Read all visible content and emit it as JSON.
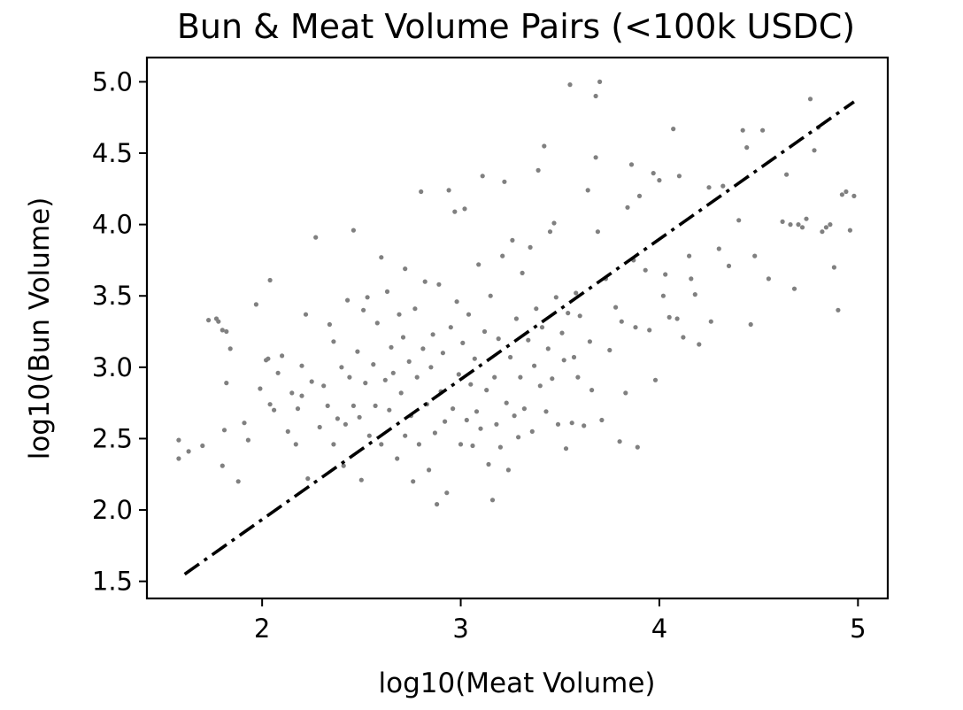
{
  "chart_data": {
    "type": "scatter",
    "title": "Bun & Meat Volume Pairs (<100k USDC)",
    "xlabel": "log10(Meat Volume)",
    "ylabel": "log10(Bun Volume)",
    "xlim": [
      1.42,
      5.15
    ],
    "ylim": [
      1.38,
      5.17
    ],
    "xticks": [
      {
        "value": 2,
        "label": "2"
      },
      {
        "value": 3,
        "label": "3"
      },
      {
        "value": 4,
        "label": "4"
      },
      {
        "value": 5,
        "label": "5"
      }
    ],
    "yticks": [
      {
        "value": 1.5,
        "label": "1.5"
      },
      {
        "value": 2.0,
        "label": "2.0"
      },
      {
        "value": 2.5,
        "label": "2.5"
      },
      {
        "value": 3.0,
        "label": "3.0"
      },
      {
        "value": 3.5,
        "label": "3.5"
      },
      {
        "value": 4.0,
        "label": "4.0"
      },
      {
        "value": 4.5,
        "label": "4.5"
      },
      {
        "value": 5.0,
        "label": "5.0"
      }
    ],
    "grid": false,
    "colors": {
      "points": "#808080",
      "line": "#000000",
      "axes": "#000000"
    },
    "series": [
      {
        "kind": "scatter",
        "points": [
          [
            1.58,
            2.49
          ],
          [
            1.58,
            2.36
          ],
          [
            1.63,
            2.41
          ],
          [
            1.7,
            2.45
          ],
          [
            1.73,
            3.33
          ],
          [
            1.77,
            3.34
          ],
          [
            1.78,
            3.32
          ],
          [
            1.8,
            3.26
          ],
          [
            1.82,
            3.25
          ],
          [
            1.82,
            2.89
          ],
          [
            1.8,
            2.31
          ],
          [
            1.81,
            2.56
          ],
          [
            1.84,
            3.13
          ],
          [
            1.88,
            2.2
          ],
          [
            1.91,
            2.61
          ],
          [
            1.93,
            2.49
          ],
          [
            1.97,
            3.44
          ],
          [
            1.99,
            2.85
          ],
          [
            2.02,
            3.05
          ],
          [
            2.03,
            3.06
          ],
          [
            2.04,
            3.61
          ],
          [
            2.04,
            2.74
          ],
          [
            2.06,
            2.7
          ],
          [
            2.08,
            2.96
          ],
          [
            2.1,
            3.08
          ],
          [
            2.13,
            2.55
          ],
          [
            2.15,
            2.82
          ],
          [
            2.17,
            2.46
          ],
          [
            2.18,
            2.71
          ],
          [
            2.2,
            2.8
          ],
          [
            2.2,
            3.01
          ],
          [
            2.22,
            3.37
          ],
          [
            2.23,
            2.22
          ],
          [
            2.25,
            2.9
          ],
          [
            2.27,
            3.91
          ],
          [
            2.29,
            2.58
          ],
          [
            2.31,
            2.87
          ],
          [
            2.33,
            2.73
          ],
          [
            2.34,
            3.3
          ],
          [
            2.36,
            3.18
          ],
          [
            2.36,
            2.46
          ],
          [
            2.38,
            2.64
          ],
          [
            2.4,
            3.0
          ],
          [
            2.41,
            2.31
          ],
          [
            2.42,
            2.6
          ],
          [
            2.43,
            3.47
          ],
          [
            2.44,
            2.93
          ],
          [
            2.46,
            3.96
          ],
          [
            2.46,
            2.73
          ],
          [
            2.48,
            3.11
          ],
          [
            2.49,
            2.65
          ],
          [
            2.5,
            2.21
          ],
          [
            2.51,
            3.4
          ],
          [
            2.52,
            2.89
          ],
          [
            2.53,
            3.49
          ],
          [
            2.54,
            2.52
          ],
          [
            2.56,
            3.02
          ],
          [
            2.57,
            2.73
          ],
          [
            2.58,
            3.31
          ],
          [
            2.6,
            2.46
          ],
          [
            2.6,
            3.77
          ],
          [
            2.62,
            2.91
          ],
          [
            2.63,
            3.53
          ],
          [
            2.64,
            2.7
          ],
          [
            2.65,
            3.14
          ],
          [
            2.66,
            2.96
          ],
          [
            2.68,
            2.36
          ],
          [
            2.69,
            3.37
          ],
          [
            2.7,
            2.82
          ],
          [
            2.71,
            3.21
          ],
          [
            2.72,
            2.52
          ],
          [
            2.72,
            3.69
          ],
          [
            2.74,
            3.04
          ],
          [
            2.75,
            2.66
          ],
          [
            2.76,
            2.2
          ],
          [
            2.77,
            3.41
          ],
          [
            2.78,
            2.93
          ],
          [
            2.79,
            2.46
          ],
          [
            2.8,
            4.23
          ],
          [
            2.81,
            3.13
          ],
          [
            2.82,
            3.6
          ],
          [
            2.83,
            2.74
          ],
          [
            2.84,
            2.28
          ],
          [
            2.85,
            3.0
          ],
          [
            2.86,
            3.23
          ],
          [
            2.87,
            2.54
          ],
          [
            2.88,
            2.04
          ],
          [
            2.89,
            3.58
          ],
          [
            2.9,
            2.83
          ],
          [
            2.91,
            3.1
          ],
          [
            2.92,
            2.62
          ],
          [
            2.93,
            2.12
          ],
          [
            2.94,
            4.24
          ],
          [
            2.95,
            3.28
          ],
          [
            2.96,
            2.71
          ],
          [
            2.97,
            4.09
          ],
          [
            2.98,
            3.46
          ],
          [
            2.99,
            2.95
          ],
          [
            3.0,
            2.46
          ],
          [
            3.01,
            3.17
          ],
          [
            3.02,
            4.11
          ],
          [
            3.03,
            2.63
          ],
          [
            3.04,
            3.37
          ],
          [
            3.05,
            2.88
          ],
          [
            3.06,
            2.45
          ],
          [
            3.07,
            3.06
          ],
          [
            3.08,
            2.69
          ],
          [
            3.09,
            3.72
          ],
          [
            3.1,
            2.57
          ],
          [
            3.11,
            4.34
          ],
          [
            3.12,
            3.25
          ],
          [
            3.13,
            2.84
          ],
          [
            3.14,
            2.32
          ],
          [
            3.15,
            3.5
          ],
          [
            3.16,
            2.07
          ],
          [
            3.17,
            2.93
          ],
          [
            3.18,
            2.6
          ],
          [
            3.19,
            3.2
          ],
          [
            3.2,
            2.44
          ],
          [
            3.21,
            3.78
          ],
          [
            3.22,
            4.3
          ],
          [
            3.23,
            2.75
          ],
          [
            3.24,
            2.28
          ],
          [
            3.25,
            3.07
          ],
          [
            3.26,
            3.89
          ],
          [
            3.27,
            2.66
          ],
          [
            3.28,
            3.34
          ],
          [
            3.29,
            2.51
          ],
          [
            3.3,
            2.93
          ],
          [
            3.31,
            3.66
          ],
          [
            3.32,
            2.71
          ],
          [
            3.34,
            3.19
          ],
          [
            3.35,
            3.84
          ],
          [
            3.36,
            2.55
          ],
          [
            3.37,
            3.01
          ],
          [
            3.38,
            3.41
          ],
          [
            3.39,
            4.38
          ],
          [
            3.4,
            2.87
          ],
          [
            3.41,
            3.28
          ],
          [
            3.42,
            4.55
          ],
          [
            3.43,
            2.69
          ],
          [
            3.44,
            3.13
          ],
          [
            3.45,
            3.95
          ],
          [
            3.46,
            2.92
          ],
          [
            3.47,
            4.01
          ],
          [
            3.48,
            3.49
          ],
          [
            3.49,
            2.6
          ],
          [
            3.51,
            3.24
          ],
          [
            3.52,
            3.05
          ],
          [
            3.53,
            2.43
          ],
          [
            3.54,
            3.38
          ],
          [
            3.55,
            4.98
          ],
          [
            3.56,
            2.61
          ],
          [
            3.57,
            3.07
          ],
          [
            3.58,
            3.52
          ],
          [
            3.59,
            2.93
          ],
          [
            3.6,
            3.36
          ],
          [
            3.62,
            2.59
          ],
          [
            3.64,
            4.24
          ],
          [
            3.65,
            3.18
          ],
          [
            3.66,
            2.84
          ],
          [
            3.68,
            4.47
          ],
          [
            3.68,
            4.9
          ],
          [
            3.7,
            5.0
          ],
          [
            3.69,
            3.95
          ],
          [
            3.71,
            2.63
          ],
          [
            3.73,
            3.62
          ],
          [
            3.75,
            3.12
          ],
          [
            3.78,
            3.42
          ],
          [
            3.8,
            2.48
          ],
          [
            3.81,
            3.32
          ],
          [
            3.83,
            2.82
          ],
          [
            3.84,
            4.12
          ],
          [
            3.86,
            4.42
          ],
          [
            3.87,
            3.75
          ],
          [
            3.88,
            3.28
          ],
          [
            3.89,
            2.44
          ],
          [
            3.9,
            4.2
          ],
          [
            3.93,
            3.68
          ],
          [
            3.95,
            3.26
          ],
          [
            3.97,
            4.36
          ],
          [
            3.98,
            2.91
          ],
          [
            4.0,
            4.31
          ],
          [
            4.02,
            3.5
          ],
          [
            4.03,
            3.65
          ],
          [
            4.05,
            3.35
          ],
          [
            4.07,
            4.67
          ],
          [
            4.09,
            3.34
          ],
          [
            4.1,
            4.34
          ],
          [
            4.12,
            3.21
          ],
          [
            4.15,
            3.78
          ],
          [
            4.16,
            3.62
          ],
          [
            4.18,
            3.51
          ],
          [
            4.2,
            3.16
          ],
          [
            4.25,
            4.26
          ],
          [
            4.26,
            3.32
          ],
          [
            4.3,
            3.83
          ],
          [
            4.32,
            4.27
          ],
          [
            4.35,
            3.71
          ],
          [
            4.4,
            4.03
          ],
          [
            4.42,
            4.66
          ],
          [
            4.44,
            4.54
          ],
          [
            4.46,
            3.3
          ],
          [
            4.48,
            3.78
          ],
          [
            4.52,
            4.66
          ],
          [
            4.55,
            3.62
          ],
          [
            4.62,
            4.02
          ],
          [
            4.64,
            4.35
          ],
          [
            4.66,
            4.0
          ],
          [
            4.68,
            3.55
          ],
          [
            4.7,
            4.0
          ],
          [
            4.72,
            3.98
          ],
          [
            4.74,
            4.04
          ],
          [
            4.76,
            4.88
          ],
          [
            4.78,
            4.52
          ],
          [
            4.8,
            4.68
          ],
          [
            4.82,
            3.95
          ],
          [
            4.84,
            3.98
          ],
          [
            4.86,
            4.0
          ],
          [
            4.88,
            3.7
          ],
          [
            4.9,
            3.4
          ],
          [
            4.92,
            4.21
          ],
          [
            4.94,
            4.23
          ],
          [
            4.96,
            3.96
          ],
          [
            4.98,
            4.2
          ]
        ]
      },
      {
        "kind": "line",
        "style": "dash-dot",
        "points": [
          [
            1.61,
            1.55
          ],
          [
            4.98,
            4.86
          ]
        ]
      }
    ]
  }
}
